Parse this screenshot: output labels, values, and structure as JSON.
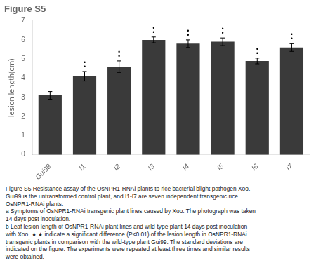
{
  "chart_data": {
    "type": "bar",
    "title": "Figure S5",
    "categories": [
      "Gui99",
      "I1",
      "I2",
      "I3",
      "I4",
      "I5",
      "I6",
      "I7"
    ],
    "values": [
      3.1,
      4.1,
      4.6,
      6.0,
      5.8,
      5.9,
      4.9,
      5.6
    ],
    "errors": [
      0.2,
      0.25,
      0.3,
      0.15,
      0.2,
      0.2,
      0.15,
      0.2
    ],
    "color": "#3a3a3a",
    "ylabel": "lesion length(cm)",
    "ylim": [
      0,
      7
    ],
    "yticks": [
      0,
      1,
      2,
      3,
      4,
      5,
      6,
      7
    ],
    "grid": false,
    "significance": [
      null,
      "•\n•",
      "•\n•",
      "•\n•",
      "•\n•",
      "•\n•",
      "•\n•",
      "•\n•"
    ],
    "annotations": [
      "Figure S5 Resistance assay of the OsNPR1-RNAi plants to rice bacterial blight pathogen Xoo.",
      "Gui99 is the untransformed control plant, and I1-I7 are seven independent transgenic rice",
      "OsNPR1-RNAi plants.",
      "a Symptoms of OsNPR1-RNAi transgenic plant lines caused by Xoo. The photograph was taken",
      "14 days post inoculation.",
      "b Leaf lesion length of OsNPR1-RNAi plant lines and wild-type plant 14 days post inoculation",
      "with Xoo. ★ ★ indicate a significant difference (P<0.01) of the lesion length in OsNPR1-RNAi",
      "transgenic plants in comparison with the wild-type plant Gui99. The standard deviations are",
      "indicated on the figure. The experiments were repeated at least three times and similar results",
      "were obtained."
    ]
  }
}
